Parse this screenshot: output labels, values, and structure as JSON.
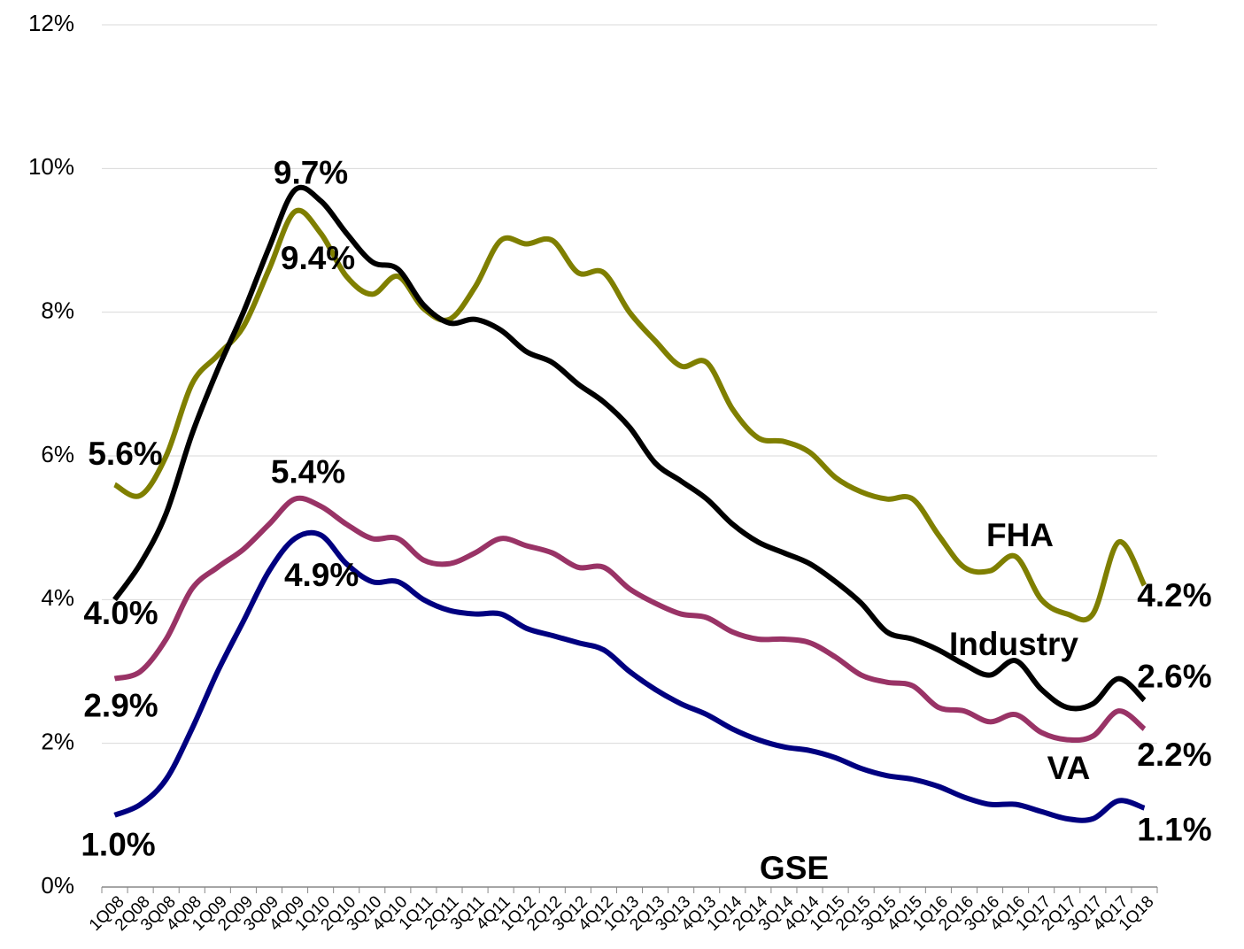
{
  "chart_data": {
    "type": "line",
    "categories": [
      "1Q08",
      "2Q08",
      "3Q08",
      "4Q08",
      "1Q09",
      "2Q09",
      "3Q09",
      "4Q09",
      "1Q10",
      "2Q10",
      "3Q10",
      "4Q10",
      "1Q11",
      "2Q11",
      "3Q11",
      "4Q11",
      "1Q12",
      "2Q12",
      "3Q12",
      "4Q12",
      "1Q13",
      "2Q13",
      "3Q13",
      "4Q13",
      "1Q14",
      "2Q14",
      "3Q14",
      "4Q14",
      "1Q15",
      "2Q15",
      "3Q15",
      "4Q15",
      "1Q16",
      "2Q16",
      "3Q16",
      "4Q16",
      "1Q17",
      "2Q17",
      "3Q17",
      "4Q17",
      "1Q18"
    ],
    "series": [
      {
        "name": "FHA",
        "color": "#7f7f00",
        "values": [
          5.6,
          5.45,
          6.0,
          7.0,
          7.4,
          7.8,
          8.6,
          9.4,
          9.1,
          8.5,
          8.25,
          8.5,
          8.05,
          7.9,
          8.35,
          9.0,
          8.95,
          9.0,
          8.55,
          8.55,
          8.0,
          7.6,
          7.25,
          7.3,
          6.65,
          6.25,
          6.2,
          6.05,
          5.7,
          5.5,
          5.4,
          5.4,
          4.9,
          4.45,
          4.4,
          4.6,
          4.0,
          3.8,
          3.8,
          4.8,
          4.2
        ],
        "value_labels": [
          "5.6%",
          null,
          null,
          null,
          null,
          null,
          null,
          "9.4%",
          null,
          null,
          null,
          null,
          null,
          null,
          null,
          null,
          null,
          null,
          null,
          null,
          null,
          null,
          null,
          null,
          null,
          null,
          null,
          null,
          null,
          null,
          null,
          null,
          null,
          null,
          null,
          null,
          null,
          null,
          null,
          null,
          "4.2%"
        ]
      },
      {
        "name": "Industry",
        "color": "#000000",
        "values": [
          4.0,
          4.5,
          5.2,
          6.3,
          7.2,
          8.0,
          8.9,
          9.7,
          9.55,
          9.1,
          8.7,
          8.6,
          8.1,
          7.85,
          7.9,
          7.75,
          7.45,
          7.3,
          7.0,
          6.75,
          6.4,
          5.9,
          5.65,
          5.4,
          5.05,
          4.8,
          4.65,
          4.5,
          4.25,
          3.95,
          3.55,
          3.45,
          3.3,
          3.1,
          2.95,
          3.15,
          2.75,
          2.5,
          2.55,
          2.9,
          2.6
        ],
        "value_labels": [
          "4.0%",
          null,
          null,
          null,
          null,
          null,
          null,
          "9.7%",
          null,
          null,
          null,
          null,
          null,
          null,
          null,
          null,
          null,
          null,
          null,
          null,
          null,
          null,
          null,
          null,
          null,
          null,
          null,
          null,
          null,
          null,
          null,
          null,
          null,
          null,
          null,
          null,
          null,
          null,
          null,
          null,
          "2.6%"
        ]
      },
      {
        "name": "VA",
        "color": "#993366",
        "values": [
          2.9,
          3.0,
          3.45,
          4.15,
          4.45,
          4.7,
          5.05,
          5.4,
          5.3,
          5.05,
          4.85,
          4.85,
          4.55,
          4.5,
          4.65,
          4.85,
          4.75,
          4.65,
          4.45,
          4.45,
          4.15,
          3.95,
          3.8,
          3.75,
          3.55,
          3.45,
          3.45,
          3.4,
          3.2,
          2.95,
          2.85,
          2.8,
          2.5,
          2.45,
          2.3,
          2.4,
          2.15,
          2.05,
          2.1,
          2.45,
          2.2
        ],
        "value_labels": [
          "2.9%",
          null,
          null,
          null,
          null,
          null,
          null,
          "5.4%",
          null,
          null,
          null,
          null,
          null,
          null,
          null,
          null,
          null,
          null,
          null,
          null,
          null,
          null,
          null,
          null,
          null,
          null,
          null,
          null,
          null,
          null,
          null,
          null,
          null,
          null,
          null,
          null,
          null,
          null,
          null,
          null,
          "2.2%"
        ]
      },
      {
        "name": "GSE",
        "color": "#000080",
        "values": [
          1.0,
          1.15,
          1.5,
          2.2,
          3.0,
          3.7,
          4.4,
          4.85,
          4.9,
          4.5,
          4.25,
          4.25,
          4.0,
          3.85,
          3.8,
          3.8,
          3.6,
          3.5,
          3.4,
          3.3,
          3.0,
          2.75,
          2.55,
          2.4,
          2.2,
          2.05,
          1.95,
          1.9,
          1.8,
          1.65,
          1.55,
          1.5,
          1.4,
          1.25,
          1.15,
          1.15,
          1.05,
          0.95,
          0.95,
          1.2,
          1.1
        ],
        "value_labels": [
          "1.0%",
          null,
          null,
          null,
          null,
          null,
          null,
          null,
          "4.9%",
          null,
          null,
          null,
          null,
          null,
          null,
          null,
          null,
          null,
          null,
          null,
          null,
          null,
          null,
          null,
          null,
          null,
          null,
          null,
          null,
          null,
          null,
          null,
          null,
          null,
          null,
          null,
          null,
          null,
          null,
          null,
          "1.1%"
        ]
      }
    ],
    "ylim": [
      0,
      12
    ],
    "yticks": [
      {
        "value": 0,
        "label": "0%"
      },
      {
        "value": 2,
        "label": "2%"
      },
      {
        "value": 4,
        "label": "4%"
      },
      {
        "value": 6,
        "label": "6%"
      },
      {
        "value": 8,
        "label": "8%"
      },
      {
        "value": 10,
        "label": "10%"
      },
      {
        "value": 12,
        "label": "12%"
      }
    ],
    "grid": true
  }
}
